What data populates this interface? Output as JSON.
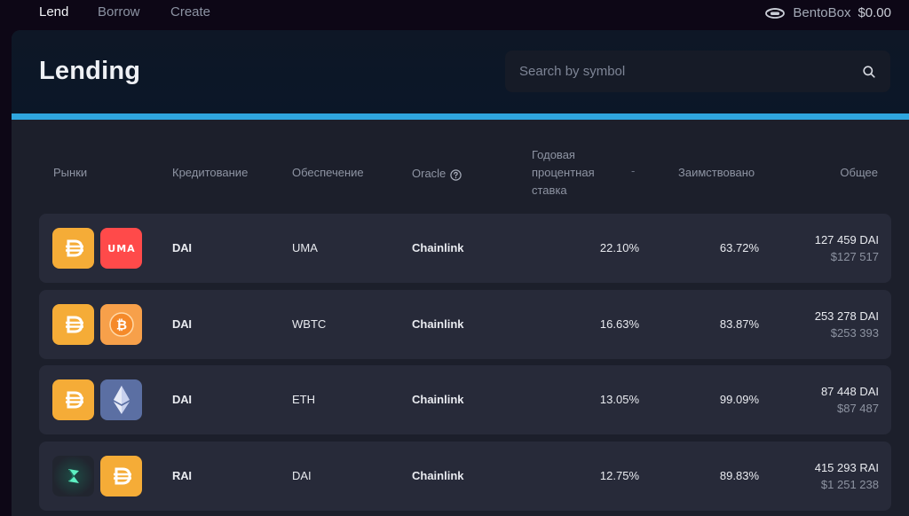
{
  "nav": {
    "lend": "Lend",
    "borrow": "Borrow",
    "create": "Create"
  },
  "wallet": {
    "icon": "bentobox-icon",
    "label": "BentoBox",
    "balance": "$0.00"
  },
  "page": {
    "title": "Lending"
  },
  "search": {
    "placeholder": "Search by symbol",
    "value": "",
    "icon": "search-icon"
  },
  "colors": {
    "accent": "#2fa6de",
    "dai": "#f5ac37",
    "uma": "#ff4a4a",
    "btc": "#f7931a",
    "eth": "#627eea",
    "rai": "#5ef0c2"
  },
  "table": {
    "headers": {
      "market": "Рынки",
      "lending": "Кредитование",
      "collateral": "Обеспечение",
      "oracle": "Oracle",
      "apr_line1": "Годовая",
      "apr_line2": "процентная",
      "apr_line3": "ставка",
      "apr_sort": "-",
      "borrowed": "Заимствовано",
      "total": "Общее"
    },
    "rows": [
      {
        "asset_icon": "dai-icon",
        "collateral_icon": "uma-icon",
        "collateral_icon_text": "UMA",
        "lending": "DAI",
        "collateral": "UMA",
        "oracle": "Chainlink",
        "apr": "22.10%",
        "borrowed": "63.72%",
        "total_amount": "127 459 DAI",
        "total_usd": "$127 517"
      },
      {
        "asset_icon": "dai-icon",
        "collateral_icon": "wbtc-icon",
        "lending": "DAI",
        "collateral": "WBTC",
        "oracle": "Chainlink",
        "apr": "16.63%",
        "borrowed": "83.87%",
        "total_amount": "253 278 DAI",
        "total_usd": "$253 393"
      },
      {
        "asset_icon": "dai-icon",
        "collateral_icon": "eth-icon",
        "lending": "DAI",
        "collateral": "ETH",
        "oracle": "Chainlink",
        "apr": "13.05%",
        "borrowed": "99.09%",
        "total_amount": "87 448 DAI",
        "total_usd": "$87 487"
      },
      {
        "asset_icon": "rai-icon",
        "collateral_icon": "dai-icon",
        "lending": "RAI",
        "collateral": "DAI",
        "oracle": "Chainlink",
        "apr": "12.75%",
        "borrowed": "89.83%",
        "total_amount": "415 293 RAI",
        "total_usd": "$1 251 238"
      }
    ]
  }
}
